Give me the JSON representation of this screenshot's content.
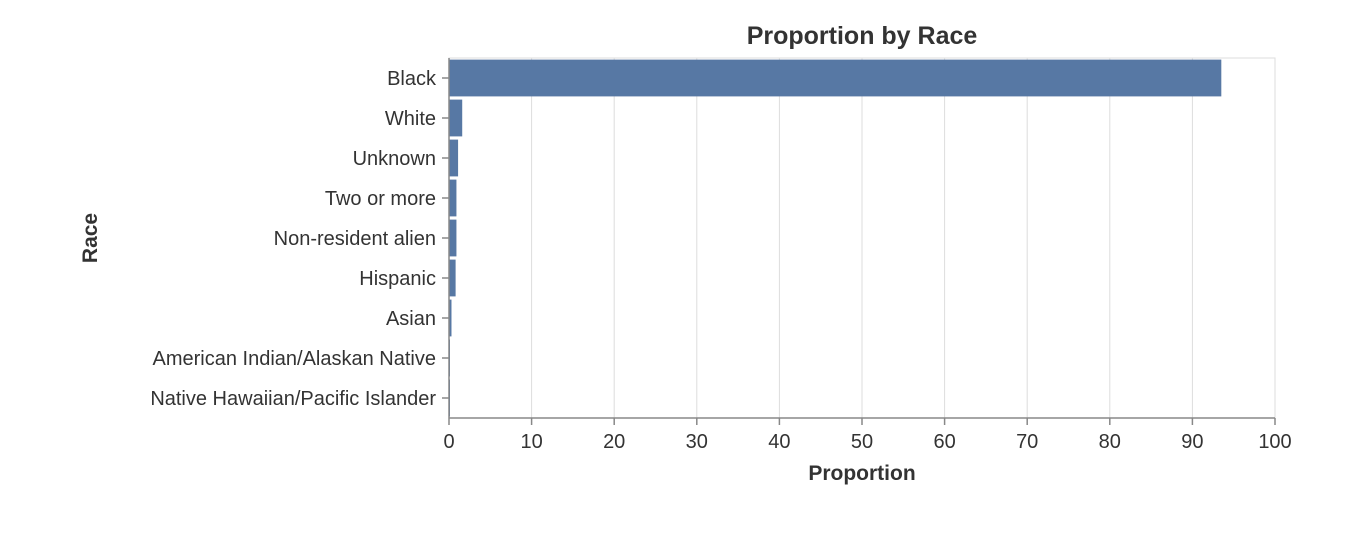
{
  "chart_data": {
    "type": "bar",
    "orientation": "horizontal",
    "title": "Proportion by Race",
    "xlabel": "Proportion",
    "ylabel": "Race",
    "categories": [
      "Black",
      "White",
      "Unknown",
      "Two or more",
      "Non-resident alien",
      "Hispanic",
      "Asian",
      "American Indian/Alaskan Native",
      "Native Hawaiian/Pacific Islander"
    ],
    "values": [
      93.5,
      1.6,
      1.1,
      0.9,
      0.9,
      0.8,
      0.3,
      0.1,
      0.05
    ],
    "xlim": [
      0,
      100
    ],
    "xticks": [
      0,
      10,
      20,
      30,
      40,
      50,
      60,
      70,
      80,
      90,
      100
    ],
    "grid": true,
    "bar_color": "#5778a4"
  }
}
